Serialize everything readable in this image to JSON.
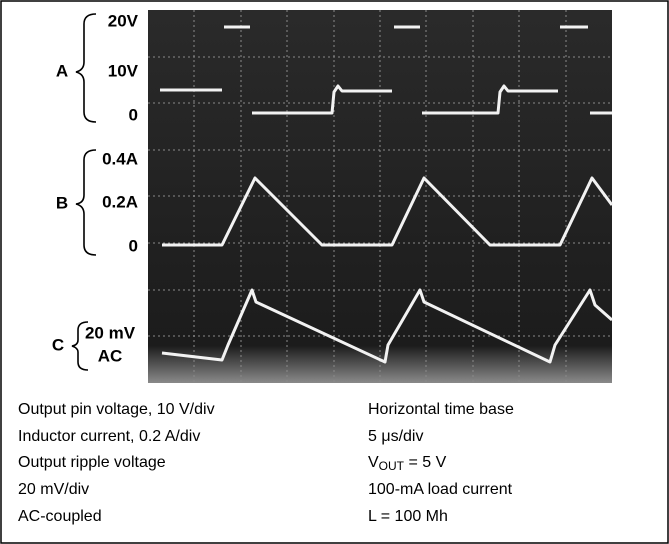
{
  "scope_labels": {
    "A": {
      "letter": "A",
      "ticks": [
        "20V",
        "10V",
        "0"
      ]
    },
    "B": {
      "letter": "B",
      "ticks": [
        "0.4A",
        "0.2A",
        "0"
      ]
    },
    "C": {
      "letter": "C",
      "lines": [
        "20 mV",
        "AC"
      ]
    }
  },
  "caption": {
    "left": [
      "Output pin voltage, 10 V/div",
      "Inductor current, 0.2 A/div",
      "Output ripple voltage",
      "20 mV/div",
      "AC-coupled"
    ],
    "right": {
      "time_base": "Horizontal time base",
      "per_div": "5 μs/div",
      "vout": {
        "main": "V",
        "sub": "OUT",
        "rest": " = 5 V"
      },
      "load": "100-mA load current",
      "inductor": "L = 100 Mh"
    }
  }
}
